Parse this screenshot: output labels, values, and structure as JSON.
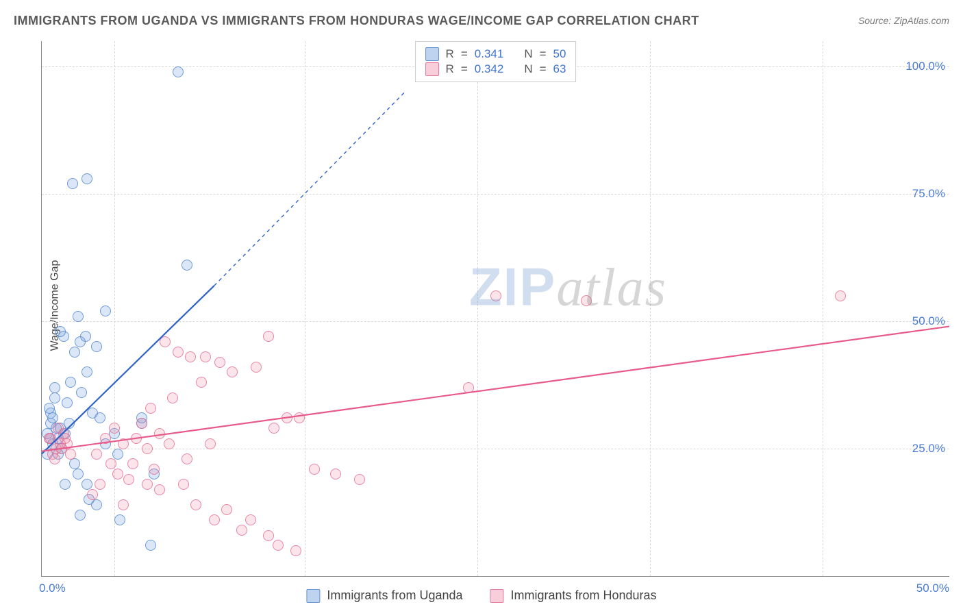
{
  "title": "IMMIGRANTS FROM UGANDA VS IMMIGRANTS FROM HONDURAS WAGE/INCOME GAP CORRELATION CHART",
  "source_label": "Source: ",
  "source_value": "ZipAtlas.com",
  "y_axis_label": "Wage/Income Gap",
  "watermark_zip": "ZIP",
  "watermark_atlas": "atlas",
  "chart": {
    "type": "scatter",
    "xlim": [
      0,
      50
    ],
    "ylim": [
      0,
      105
    ],
    "y_ticks": [
      25,
      50,
      75,
      100
    ],
    "y_tick_labels": [
      "25.0%",
      "50.0%",
      "75.0%",
      "100.0%"
    ],
    "x_tick_left": "0.0%",
    "x_tick_right": "50.0%",
    "x_grid_positions": [
      4,
      14.5,
      24,
      33.5,
      43
    ],
    "background_color": "#ffffff",
    "grid_color": "#d8d8d8",
    "axis_color": "#888888",
    "tick_label_color": "#4a7bd0",
    "series": [
      {
        "name": "uganda",
        "label": "Immigrants from Uganda",
        "fill_color": "rgba(110,158,218,0.25)",
        "stroke_color": "rgba(90,140,210,0.85)",
        "r_value": "0.341",
        "n_value": "50",
        "trend": {
          "x1": 0,
          "y1": 24,
          "x2_solid": 9.5,
          "y2_solid": 57,
          "x2_dash": 20,
          "y2_dash": 95,
          "color": "#2f62c9",
          "width": 2.2
        },
        "points": [
          [
            0.3,
            28
          ],
          [
            0.5,
            30
          ],
          [
            0.6,
            26
          ],
          [
            0.8,
            29
          ],
          [
            0.5,
            32
          ],
          [
            0.9,
            27
          ],
          [
            1.1,
            25
          ],
          [
            0.3,
            24
          ],
          [
            0.6,
            31
          ],
          [
            0.4,
            33
          ],
          [
            1.0,
            29
          ],
          [
            0.7,
            35
          ],
          [
            1.3,
            28
          ],
          [
            1.5,
            30
          ],
          [
            0.4,
            27
          ],
          [
            0.9,
            24
          ],
          [
            1.2,
            47
          ],
          [
            2.1,
            46
          ],
          [
            2.4,
            47
          ],
          [
            1.8,
            44
          ],
          [
            1.0,
            48
          ],
          [
            3.0,
            45
          ],
          [
            2.5,
            40
          ],
          [
            1.6,
            38
          ],
          [
            0.7,
            37
          ],
          [
            2.2,
            36
          ],
          [
            1.4,
            34
          ],
          [
            2.8,
            32
          ],
          [
            3.2,
            31
          ],
          [
            1.8,
            22
          ],
          [
            2.0,
            20
          ],
          [
            2.5,
            18
          ],
          [
            1.3,
            18
          ],
          [
            2.6,
            15
          ],
          [
            3.0,
            14
          ],
          [
            2.1,
            12
          ],
          [
            4.3,
            11
          ],
          [
            6.0,
            6
          ],
          [
            6.2,
            20
          ],
          [
            5.5,
            30
          ],
          [
            4.0,
            28
          ],
          [
            3.5,
            26
          ],
          [
            4.2,
            24
          ],
          [
            2.0,
            51
          ],
          [
            3.5,
            52
          ],
          [
            8.0,
            61
          ],
          [
            2.5,
            78
          ],
          [
            1.7,
            77
          ],
          [
            7.5,
            99
          ],
          [
            5.5,
            31
          ]
        ]
      },
      {
        "name": "honduras",
        "label": "Immigrants from Honduras",
        "fill_color": "rgba(235,130,160,0.22)",
        "stroke_color": "rgba(228,110,150,0.8)",
        "r_value": "0.342",
        "n_value": "63",
        "trend": {
          "x1": 0,
          "y1": 24.5,
          "x2_solid": 50,
          "y2_solid": 49,
          "color": "#e85a8a",
          "width": 2.2
        },
        "points": [
          [
            0.5,
            27
          ],
          [
            0.8,
            25
          ],
          [
            1.0,
            26
          ],
          [
            0.6,
            24
          ],
          [
            1.2,
            28
          ],
          [
            0.4,
            27
          ],
          [
            0.9,
            29
          ],
          [
            1.4,
            26
          ],
          [
            1.1,
            25
          ],
          [
            0.7,
            23
          ],
          [
            1.6,
            24
          ],
          [
            1.3,
            27
          ],
          [
            3.5,
            27
          ],
          [
            3.0,
            24
          ],
          [
            4.5,
            26
          ],
          [
            4.0,
            29
          ],
          [
            5.2,
            27
          ],
          [
            5.8,
            25
          ],
          [
            6.5,
            28
          ],
          [
            5.5,
            30
          ],
          [
            7.0,
            26
          ],
          [
            3.8,
            22
          ],
          [
            4.2,
            20
          ],
          [
            5.0,
            22
          ],
          [
            6.2,
            21
          ],
          [
            4.8,
            19
          ],
          [
            7.8,
            18
          ],
          [
            8.5,
            14
          ],
          [
            10.2,
            13
          ],
          [
            9.5,
            11
          ],
          [
            11.5,
            11
          ],
          [
            13.0,
            6
          ],
          [
            12.5,
            8
          ],
          [
            14.0,
            5
          ],
          [
            11.0,
            9
          ],
          [
            12.8,
            29
          ],
          [
            13.5,
            31
          ],
          [
            15.0,
            21
          ],
          [
            16.2,
            20
          ],
          [
            17.5,
            19
          ],
          [
            6.8,
            46
          ],
          [
            7.5,
            44
          ],
          [
            8.2,
            43
          ],
          [
            9.0,
            43
          ],
          [
            9.8,
            42
          ],
          [
            10.5,
            40
          ],
          [
            11.8,
            41
          ],
          [
            12.5,
            47
          ],
          [
            14.2,
            31
          ],
          [
            23.5,
            37
          ],
          [
            25.0,
            55
          ],
          [
            30.0,
            54
          ],
          [
            44.0,
            55
          ],
          [
            6.0,
            33
          ],
          [
            7.2,
            35
          ],
          [
            8.8,
            38
          ],
          [
            5.8,
            18
          ],
          [
            6.5,
            17
          ],
          [
            3.2,
            18
          ],
          [
            2.8,
            16
          ],
          [
            4.5,
            14
          ],
          [
            8.0,
            23
          ],
          [
            9.3,
            26
          ]
        ]
      }
    ]
  },
  "legend_top": {
    "r_label": "R",
    "n_label": "N",
    "equals": "="
  }
}
